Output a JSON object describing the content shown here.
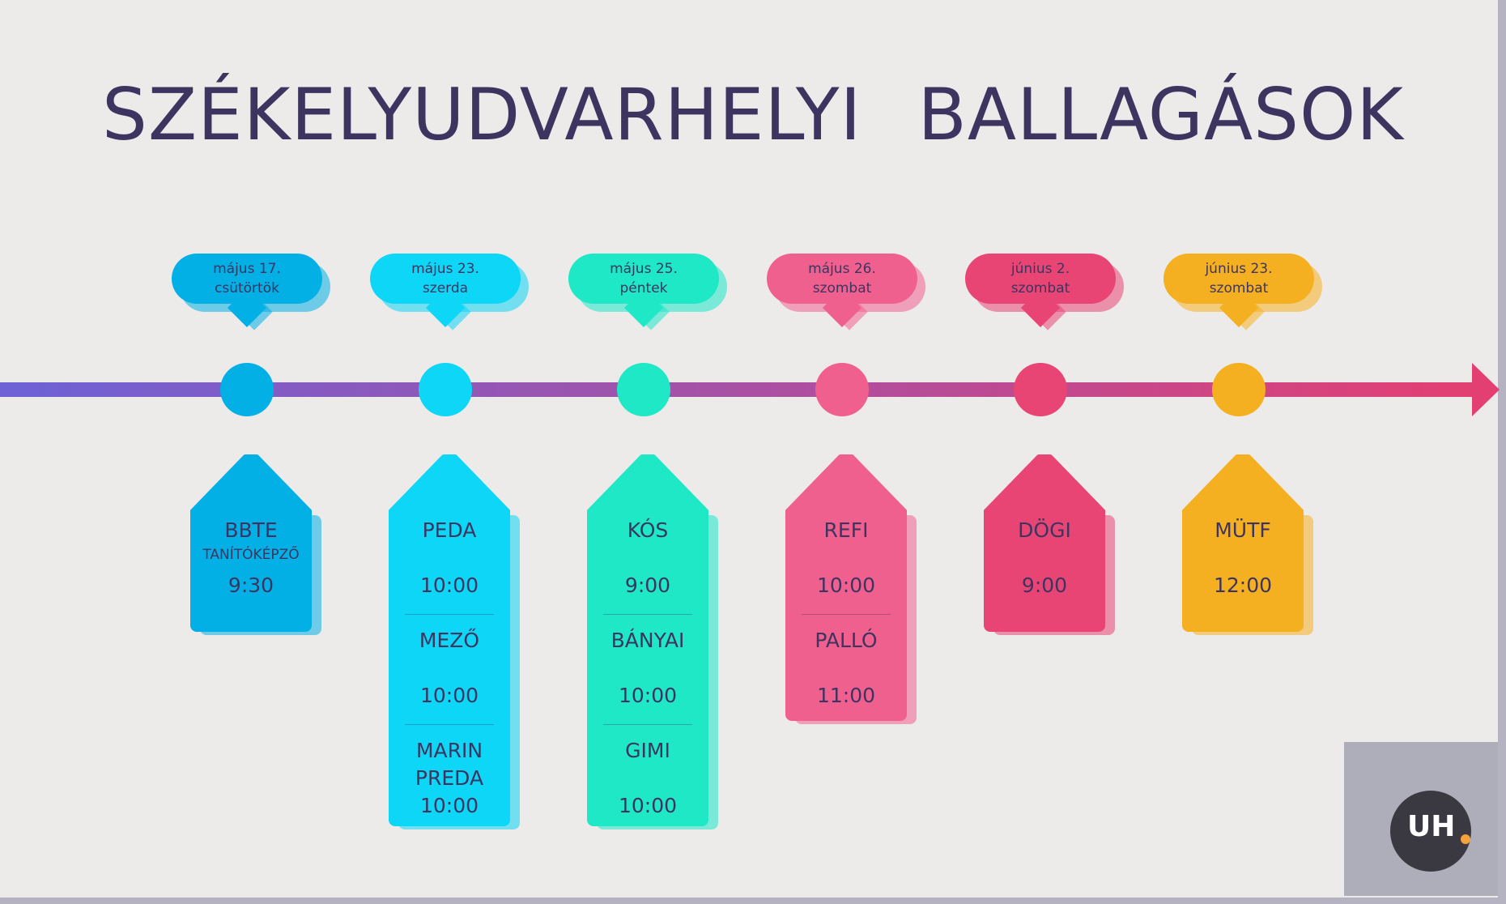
{
  "title": "SZÉKELYUDVARHELYI BALLAGÁSOK",
  "colors": {
    "blue": "#03b0e6",
    "cyan": "#0dd6f6",
    "teal": "#1ee8c6",
    "pink": "#f0608f",
    "red": "#e84574",
    "orange": "#f5b021",
    "text": "#3d3560",
    "arrow_start": "#6d62d6",
    "arrow_end": "#e33f72"
  },
  "events": [
    {
      "date": "május 17.",
      "day": "csütörtök",
      "color": "#03b0e6",
      "schools": [
        {
          "name": "BBTE",
          "sub": "TANÍTÓKÉPZŐ",
          "time": "9:30"
        }
      ]
    },
    {
      "date": "május 23.",
      "day": "szerda",
      "color": "#0dd6f6",
      "schools": [
        {
          "name": "PEDA",
          "time": "10:00"
        },
        {
          "name": "MEZŐ",
          "time": "10:00"
        },
        {
          "name": "MARIN PREDA",
          "time": "10:00"
        }
      ]
    },
    {
      "date": "május 25.",
      "day": "péntek",
      "color": "#1ee8c6",
      "schools": [
        {
          "name": "KÓS",
          "time": "9:00"
        },
        {
          "name": "BÁNYAI",
          "time": "10:00"
        },
        {
          "name": "GIMI",
          "time": "10:00"
        }
      ]
    },
    {
      "date": "május 26.",
      "day": "szombat",
      "color": "#f0608f",
      "schools": [
        {
          "name": "REFI",
          "time": "10:00"
        },
        {
          "name": "PALLÓ",
          "time": "11:00"
        }
      ]
    },
    {
      "date": "június 2.",
      "day": "szombat",
      "color": "#e84574",
      "schools": [
        {
          "name": "DÖGI",
          "time": "9:00"
        }
      ]
    },
    {
      "date": "június 23.",
      "day": "szombat",
      "color": "#f5b021",
      "schools": [
        {
          "name": "MÜTF",
          "time": "12:00"
        }
      ]
    }
  ],
  "logo": {
    "text": "UH"
  }
}
